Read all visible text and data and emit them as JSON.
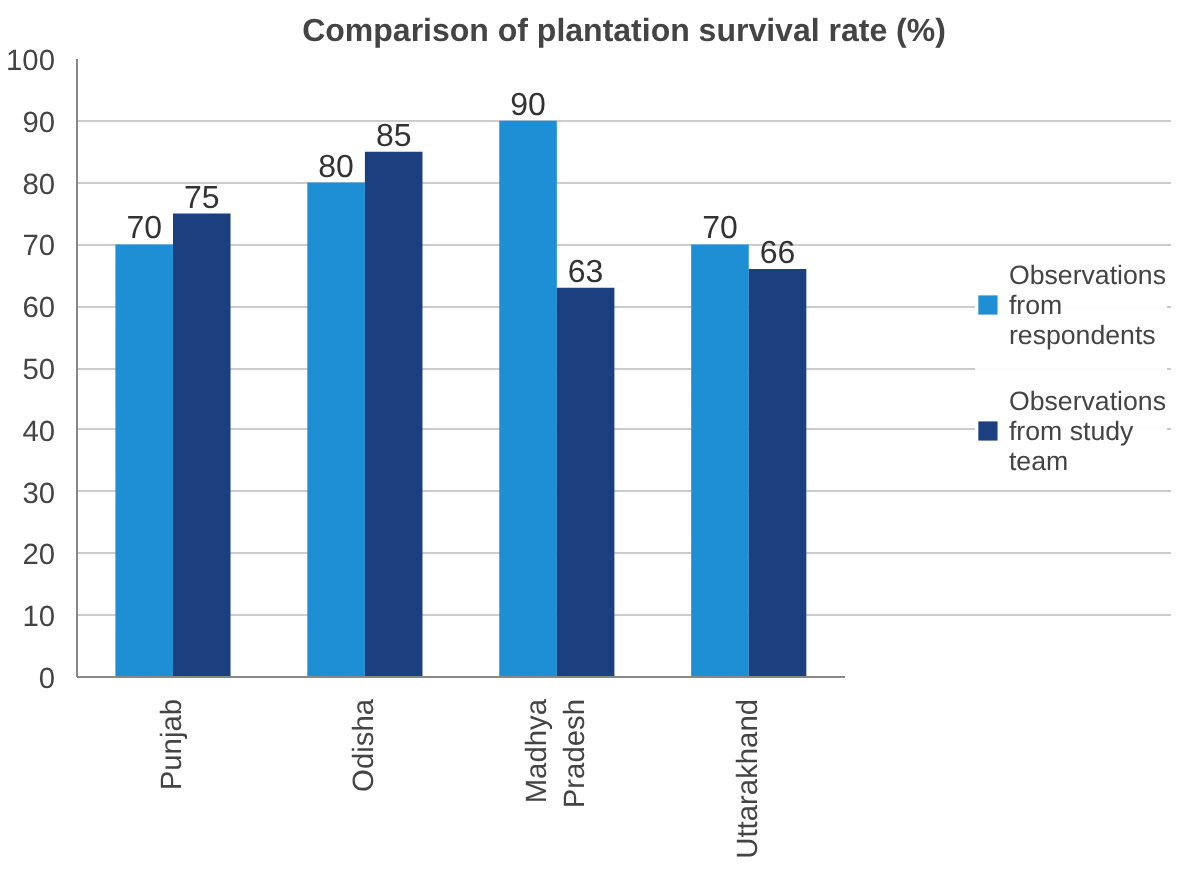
{
  "chart_data": {
    "type": "bar",
    "title": "Comparison of plantation survival rate (%)",
    "categories": [
      "Punjab",
      "Odisha",
      "Madhya Pradesh",
      "Uttarakhand"
    ],
    "series": [
      {
        "name": "Observations from respondents",
        "color": "#1e8fd5",
        "values": [
          70,
          80,
          90,
          70
        ]
      },
      {
        "name": "Observations from study team",
        "color": "#1c3f7f",
        "values": [
          75,
          85,
          63,
          66
        ]
      }
    ],
    "ylim": [
      0,
      100
    ],
    "yticks": [
      0,
      10,
      20,
      30,
      40,
      50,
      60,
      70,
      80,
      90,
      100
    ],
    "grid": "y",
    "legend": "right",
    "data_labels": true
  }
}
